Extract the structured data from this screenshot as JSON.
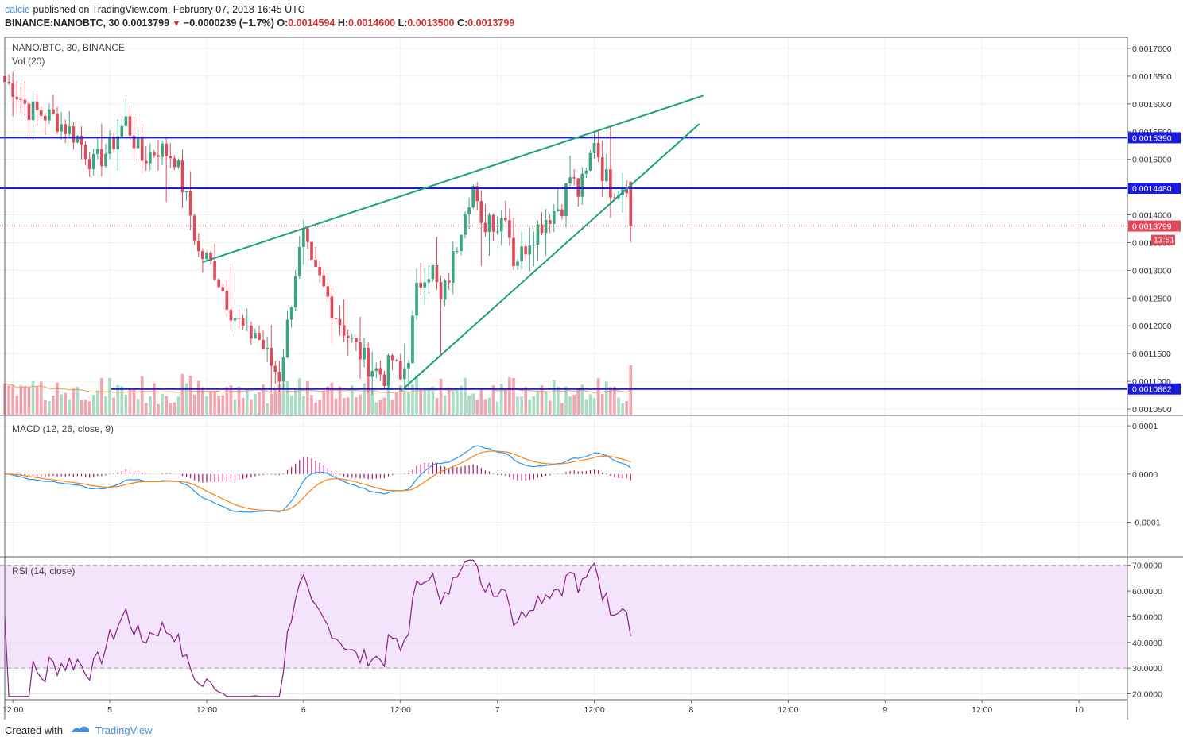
{
  "header": {
    "author": "calcie",
    "published_text": "published on TradingView.com, February 07, 2018 16:45 UTC",
    "symbol": "BINANCE:NANOBTC, 30",
    "last": "0.0013799",
    "change": "−0.0000239 (−1.7%)",
    "o_label": "O:",
    "o": "0.0014594",
    "h_label": "H:",
    "h": "0.0014600",
    "l_label": "L:",
    "l": "0.0013500",
    "c_label": "C:",
    "c": "0.0013799"
  },
  "panes": {
    "price_label": "NANO/BTC, 30, BINANCE",
    "vol_label": "Vol (20)",
    "macd_label": "MACD (12, 26, close, 9)",
    "rsi_label": "RSI (14, close)"
  },
  "footer": {
    "created_with": "Created with",
    "brand": "TradingView"
  },
  "colors": {
    "up": "#3aa680",
    "down": "#e0485b",
    "vol_up": "#a8dcc5",
    "vol_down": "#f2a5b0",
    "vol_ma": "#f39c51",
    "macd": "#2196f3",
    "signal": "#ff7f0e",
    "hist": "#b0106a",
    "rsi": "#8a1d8a",
    "rsi_band": "#f3e3fb",
    "level": "#1a1adb",
    "trend": "#1aa07d",
    "last_price": "#e0485b"
  },
  "time_axis": [
    "12:00",
    "5",
    "12:00",
    "6",
    "12:00",
    "7",
    "12:00",
    "8",
    "12:00",
    "9",
    "12:00",
    "10"
  ],
  "price_axis": [
    "0.0017000",
    "0.0016500",
    "0.0016000",
    "0.0015500",
    "0.0015000",
    "0.0014500",
    "0.0014000",
    "0.0013500",
    "0.0013000",
    "0.0012500",
    "0.0012000",
    "0.0011500",
    "0.0011000",
    "0.0010500"
  ],
  "macd_axis": [
    "0.0001",
    "0.0000",
    "-0.0001"
  ],
  "rsi_axis": [
    "70.0000",
    "60.0000",
    "50.0000",
    "40.0000",
    "30.0000",
    "20.0000"
  ],
  "levels": [
    {
      "value": 0.001539,
      "label": "0.0015390"
    },
    {
      "value": 0.001448,
      "label": "0.0014480"
    },
    {
      "value": 0.0010862,
      "label": "0.0010862"
    }
  ],
  "last_price_tag": {
    "value": 0.0013799,
    "label": "0.0013799",
    "timer": "13:51"
  },
  "chart_data": {
    "type": "candlestick",
    "symbol": "NANO/BTC",
    "interval": "30",
    "exchange": "BINANCE",
    "ylim": [
      0.00104,
      0.00172
    ],
    "x_start": "2018-02-04 11:00",
    "x_end": "2018-02-10 06:00",
    "bars_shown": "2018-02-04 11:00 to 2018-02-07 16:30",
    "anchors": [
      {
        "t": "2018-02-04 11:00",
        "close": 0.00164
      },
      {
        "t": "2018-02-04 12:00",
        "close": 0.00163
      },
      {
        "t": "2018-02-04 14:00",
        "close": 0.00159
      },
      {
        "t": "2018-02-04 17:00",
        "close": 0.001575
      },
      {
        "t": "2018-02-04 20:00",
        "close": 0.00154
      },
      {
        "t": "2018-02-04 22:00",
        "close": 0.00149
      },
      {
        "t": "2018-02-05 00:00",
        "close": 0.00152
      },
      {
        "t": "2018-02-05 02:00",
        "close": 0.00157
      },
      {
        "t": "2018-02-05 04:00",
        "close": 0.0015
      },
      {
        "t": "2018-02-05 06:00",
        "close": 0.00152
      },
      {
        "t": "2018-02-05 08:00",
        "close": 0.001505
      },
      {
        "t": "2018-02-05 10:00",
        "close": 0.0014
      },
      {
        "t": "2018-02-05 11:00",
        "close": 0.00133
      },
      {
        "t": "2018-02-05 12:00",
        "close": 0.00132
      },
      {
        "t": "2018-02-05 13:00",
        "close": 0.0013
      },
      {
        "t": "2018-02-05 15:00",
        "close": 0.00123
      },
      {
        "t": "2018-02-05 17:00",
        "close": 0.00118
      },
      {
        "t": "2018-02-05 18:00",
        "close": 0.00119
      },
      {
        "t": "2018-02-05 20:00",
        "close": 0.00113
      },
      {
        "t": "2018-02-05 21:00",
        "close": 0.00111
      },
      {
        "t": "2018-02-05 22:00",
        "close": 0.0012
      },
      {
        "t": "2018-02-05 23:00",
        "close": 0.0013
      },
      {
        "t": "2018-02-06 00:00",
        "close": 0.00136
      },
      {
        "t": "2018-02-06 01:00",
        "close": 0.0013
      },
      {
        "t": "2018-02-06 02:00",
        "close": 0.00128
      },
      {
        "t": "2018-02-06 04:00",
        "close": 0.00122
      },
      {
        "t": "2018-02-06 06:00",
        "close": 0.00117
      },
      {
        "t": "2018-02-06 08:00",
        "close": 0.00113
      },
      {
        "t": "2018-02-06 10:00",
        "close": 0.00111
      },
      {
        "t": "2018-02-06 11:00",
        "close": 0.00114
      },
      {
        "t": "2018-02-06 12:00",
        "close": 0.0011
      },
      {
        "t": "2018-02-06 13:00",
        "close": 0.00115
      },
      {
        "t": "2018-02-06 14:00",
        "close": 0.00126
      },
      {
        "t": "2018-02-06 15:00",
        "close": 0.0013
      },
      {
        "t": "2018-02-06 16:00",
        "close": 0.0013
      },
      {
        "t": "2018-02-06 17:00",
        "close": 0.00124
      },
      {
        "t": "2018-02-06 18:00",
        "close": 0.00129
      },
      {
        "t": "2018-02-06 19:00",
        "close": 0.00135
      },
      {
        "t": "2018-02-06 20:00",
        "close": 0.00142
      },
      {
        "t": "2018-02-06 21:00",
        "close": 0.00145
      },
      {
        "t": "2018-02-06 22:00",
        "close": 0.00137
      },
      {
        "t": "2018-02-06 23:00",
        "close": 0.0014
      },
      {
        "t": "2018-02-07 00:00",
        "close": 0.00138
      },
      {
        "t": "2018-02-07 01:00",
        "close": 0.00141
      },
      {
        "t": "2018-02-07 02:00",
        "close": 0.00132
      },
      {
        "t": "2018-02-07 03:00",
        "close": 0.00133
      },
      {
        "t": "2018-02-07 04:00",
        "close": 0.00136
      },
      {
        "t": "2018-02-07 06:00",
        "close": 0.001395
      },
      {
        "t": "2018-02-07 08:00",
        "close": 0.00142
      },
      {
        "t": "2018-02-07 09:00",
        "close": 0.00147
      },
      {
        "t": "2018-02-07 10:00",
        "close": 0.00144
      },
      {
        "t": "2018-02-07 11:00",
        "close": 0.00147
      },
      {
        "t": "2018-02-07 12:00",
        "close": 0.00154
      },
      {
        "t": "2018-02-07 13:00",
        "close": 0.00148
      },
      {
        "t": "2018-02-07 14:00",
        "close": 0.00145
      },
      {
        "t": "2018-02-07 15:00",
        "close": 0.00145
      },
      {
        "t": "2018-02-07 16:00",
        "close": 0.00146
      },
      {
        "t": "2018-02-07 16:30",
        "close": 0.0013799
      }
    ],
    "trendlines": [
      {
        "t1": "2018-02-05 11:30",
        "p1": 0.001315,
        "t2": "2018-02-08 01:30",
        "p2": 0.001615
      },
      {
        "t1": "2018-02-06 12:00",
        "p1": 0.001082,
        "t2": "2018-02-08 01:00",
        "p2": 0.001564
      }
    ],
    "indicators": [
      "Vol (20)",
      "MACD (12, 26, close, 9)",
      "RSI (14, close)"
    ],
    "macd_ylim": [
      -0.00017,
      0.00012
    ],
    "rsi_ylim": [
      18,
      73
    ],
    "rsi_band": [
      30,
      70
    ]
  }
}
